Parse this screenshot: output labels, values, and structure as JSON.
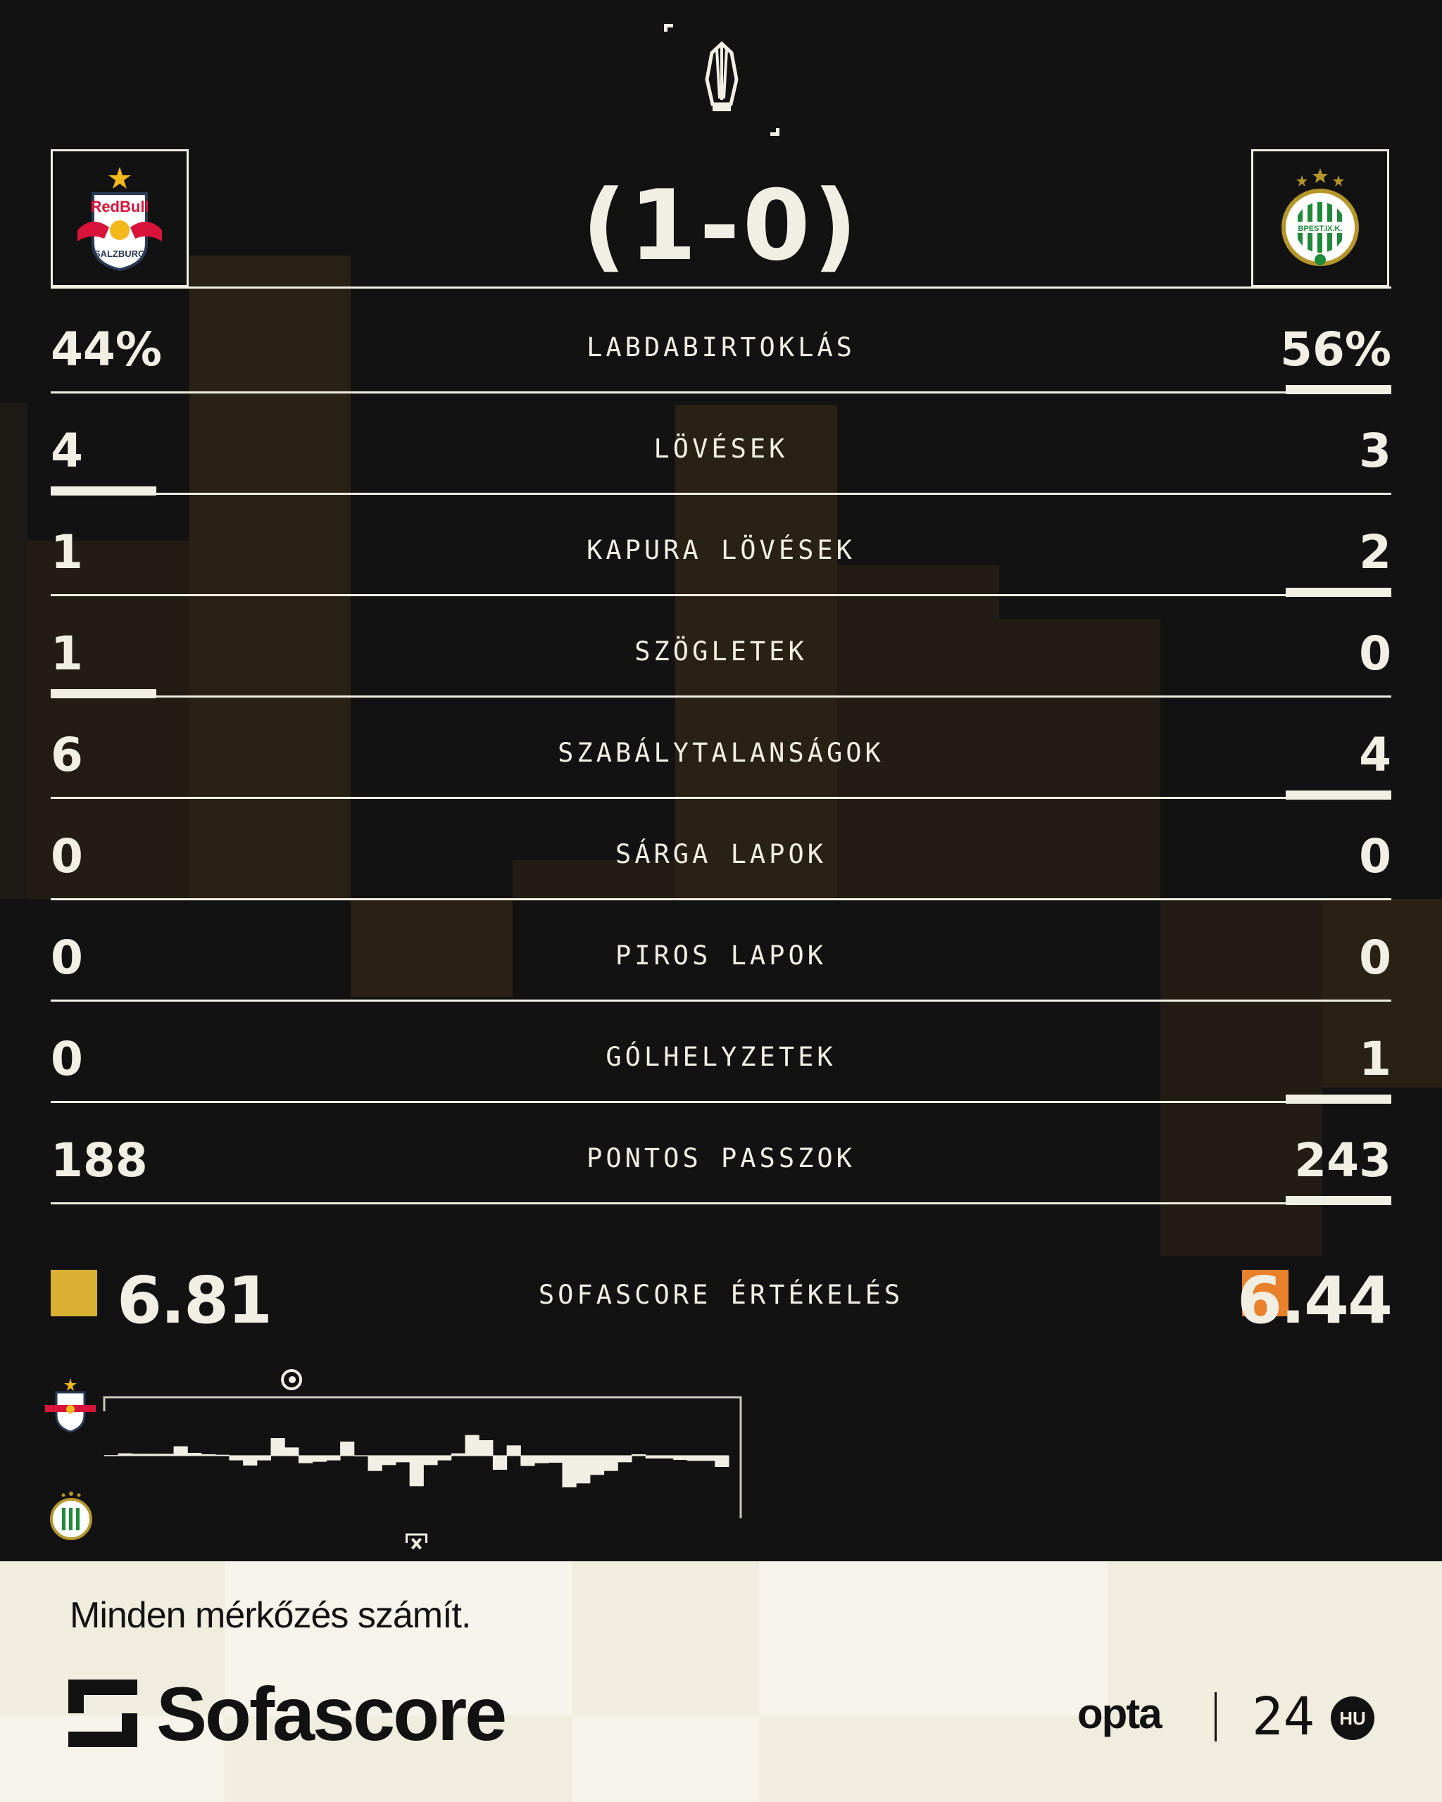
{
  "competition_icon": "conference-league-trophy-icon",
  "score": "(1-0)",
  "home_logo": {
    "icon": "red-bull-salzburg-crest",
    "text": "RedBull SALZBURG"
  },
  "away_logo": {
    "icon": "ferencvaros-crest",
    "text": "FERENCVÁROSI TORNA CLUB BPEST.IX.K. 1899"
  },
  "stats": [
    {
      "label": "LABDABIRTOKLÁS",
      "home": "44%",
      "away": "56%",
      "leader": "away"
    },
    {
      "label": "LÖVÉSEK",
      "home": "4",
      "away": "3",
      "leader": "home"
    },
    {
      "label": "KAPURA LÖVÉSEK",
      "home": "1",
      "away": "2",
      "leader": "away"
    },
    {
      "label": "SZÖGLETEK",
      "home": "1",
      "away": "0",
      "leader": "home"
    },
    {
      "label": "SZABÁLYTALANSÁGOK",
      "home": "6",
      "away": "4",
      "leader": "away"
    },
    {
      "label": "SÁRGA LAPOK",
      "home": "0",
      "away": "0",
      "leader": "none"
    },
    {
      "label": "PIROS LAPOK",
      "home": "0",
      "away": "0",
      "leader": "none"
    },
    {
      "label": "GÓLHELYZETEK",
      "home": "0",
      "away": "1",
      "leader": "away"
    },
    {
      "label": "PONTOS PASSZOK",
      "home": "188",
      "away": "243",
      "leader": "away"
    }
  ],
  "rating": {
    "label": "SOFASCORE ÉRTÉKELÉS",
    "home": "6.81",
    "away": "6.44",
    "home_color": "#d9b032",
    "away_color": "#e8802c"
  },
  "momentum": {
    "minutes": 45,
    "values": [
      2,
      10,
      8,
      8,
      8,
      40,
      12,
      6,
      4,
      -20,
      -42,
      -20,
      75,
      35,
      -32,
      -26,
      -20,
      60,
      0,
      -65,
      -40,
      -28,
      -130,
      -40,
      -20,
      10,
      88,
      66,
      -60,
      44,
      -44,
      -32,
      -30,
      -135,
      -118,
      -82,
      -65,
      -28,
      6,
      -12,
      -12,
      -18,
      -22,
      -22,
      -48
    ],
    "events": [
      {
        "minute": 14,
        "team": "home",
        "icon": "goal-ball-icon"
      },
      {
        "minute": 23,
        "team": "away",
        "icon": "missed-chance-goalpost-icon"
      }
    ]
  },
  "footer": {
    "tagline": "Minden mérkőzés számít.",
    "brand": "Sofascore",
    "partner1": "opta",
    "partner2": "24",
    "partner2_badge": "HU"
  }
}
